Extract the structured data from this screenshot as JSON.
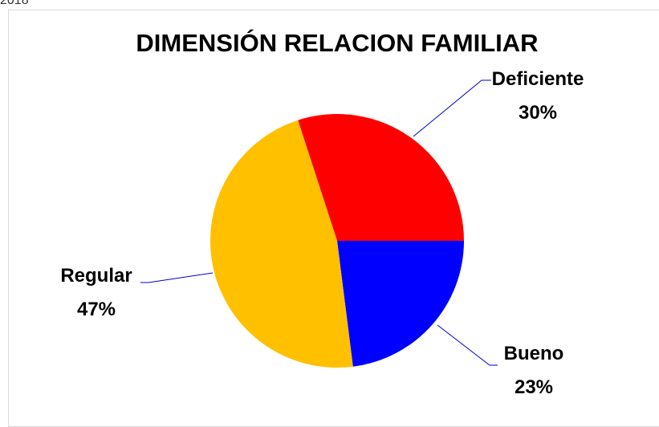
{
  "caption": "2018",
  "chart_data": {
    "type": "pie",
    "title": "DIMENSIÓN RELACION FAMILIAR",
    "categories": [
      "Deficiente",
      "Bueno",
      "Regular"
    ],
    "values": [
      30,
      23,
      47
    ],
    "value_labels": [
      "30%",
      "23%",
      "47%"
    ],
    "colors": [
      "#ff0000",
      "#0000ff",
      "#ffc000"
    ]
  }
}
